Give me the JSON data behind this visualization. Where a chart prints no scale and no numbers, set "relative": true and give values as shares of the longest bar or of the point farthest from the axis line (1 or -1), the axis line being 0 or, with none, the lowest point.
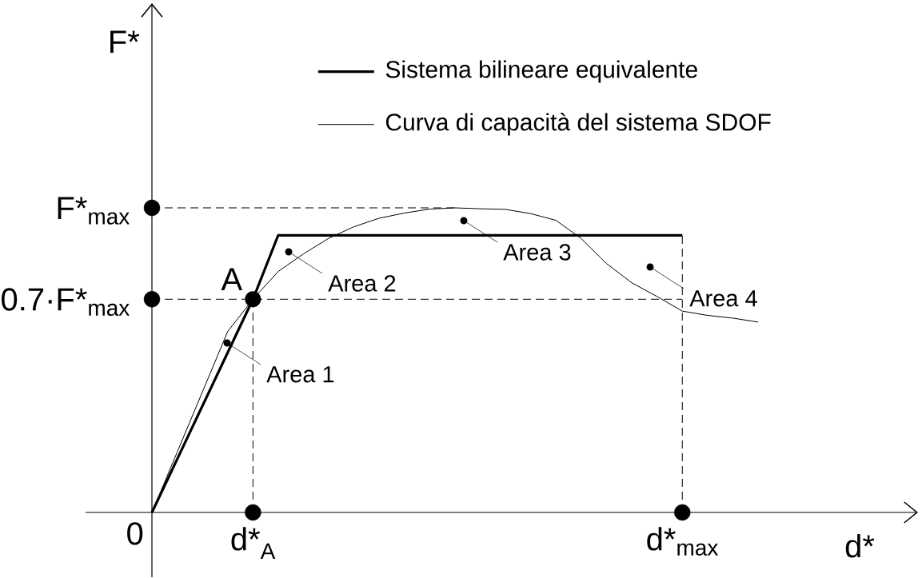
{
  "chart_data": {
    "type": "line",
    "relative": true,
    "xlabel": "d*",
    "ylabel": "F*",
    "categories": [
      "0",
      null,
      null,
      null,
      "d*$_{A}$",
      null,
      null,
      null,
      null,
      null,
      null,
      null,
      null,
      null,
      null,
      null,
      null,
      null,
      null,
      null,
      null,
      "d*$_{max}$",
      null,
      null,
      null
    ],
    "series": [
      {
        "name": "Sistema bilineare equivalente",
        "color": "#000000",
        "values": [
          0,
          0.175,
          0.35,
          0.525,
          0.7,
          0.91,
          0.91,
          0.91,
          0.91,
          0.91,
          0.91,
          0.91,
          0.91,
          0.91,
          0.91,
          0.91,
          0.91,
          0.91,
          0.91,
          0.91,
          0.91,
          0.91,
          null,
          null,
          null
        ]
      },
      {
        "name": "Curva di capacità del sistema SDOF",
        "color": "#000000",
        "values": [
          0,
          0.198,
          0.396,
          0.594,
          0.7,
          0.791,
          0.849,
          0.9,
          0.938,
          0.966,
          0.983,
          0.996,
          1.0,
          0.997,
          0.995,
          0.981,
          0.959,
          0.899,
          0.817,
          0.754,
          0.709,
          0.661,
          0.647,
          0.638,
          0.625
        ]
      },
      {
        "type": "scatter",
        "color": "#000000",
        "marker": "circle",
        "x": [
          "0",
          "0",
          "d*$_{A}$",
          "d*$_{max}$"
        ],
        "values": [
          1,
          0.7,
          0,
          0
        ]
      }
    ],
    "ref_lines": [
      {
        "axis": "y",
        "value": 1,
        "label": "F*$_{max}$",
        "line_style": "dashed"
      },
      {
        "axis": "y",
        "value": 0.7,
        "label": "0.7·F*$_{max}$",
        "line_style": "dashed"
      },
      {
        "axis": "x",
        "value": "d*$_{A}$",
        "line_style": "dashed"
      },
      {
        "axis": "x",
        "value": "d*$_{max}$",
        "line_style": "dashed"
      }
    ],
    "annotations": [
      {
        "text": "A",
        "x": "d*$_{A}$",
        "y": 0.7
      },
      "Area 1",
      "Area 2",
      "Area 3",
      "Area 4"
    ],
    "legend": "top"
  }
}
